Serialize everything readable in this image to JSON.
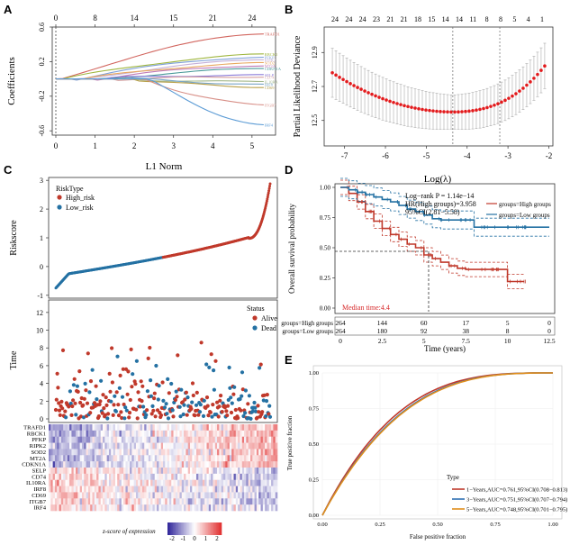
{
  "chart_data": [
    {
      "panel": "A",
      "type": "line",
      "title": "",
      "xlabel": "L1 Norm",
      "ylabel": "Coefficients",
      "xlim": [
        0,
        5.6
      ],
      "ylim": [
        -0.65,
        0.6
      ],
      "xticks": [
        "0",
        "1",
        "2",
        "3",
        "4",
        "5"
      ],
      "yticks": [
        "-0.6",
        "-0.2",
        "0.2",
        "0.6"
      ],
      "top_ticks": [
        "0",
        "8",
        "14",
        "15",
        "21",
        "24"
      ],
      "series": [
        {
          "name": "TRAFD1",
          "color": "#d2665f",
          "values": [
            0.52
          ]
        },
        {
          "name": "RBCK1",
          "color": "#9fb63f",
          "values": [
            0.29
          ]
        },
        {
          "name": "PFKP",
          "color": "#7fa0d8",
          "values": [
            0.25
          ]
        },
        {
          "name": "RIPK2",
          "color": "#c5b0d8",
          "values": [
            0.22
          ]
        },
        {
          "name": "SOD2",
          "color": "#e8a860",
          "values": [
            0.19
          ]
        },
        {
          "name": "MT2A",
          "color": "#c07bb8",
          "values": [
            0.15
          ]
        },
        {
          "name": "CDKN1A",
          "color": "#4a9a9a",
          "values": [
            0.12
          ]
        },
        {
          "name": "SELP",
          "color": "#8b7bd8",
          "values": [
            0.05
          ]
        },
        {
          "name": "CD74",
          "color": "#d6a0a0",
          "values": [
            0.02
          ]
        },
        {
          "name": "IL10RA",
          "color": "#a3b88a",
          "values": [
            -0.03
          ]
        },
        {
          "name": "IRF8",
          "color": "#7aa6c7",
          "values": [
            -0.06
          ]
        },
        {
          "name": "CD69",
          "color": "#b8a04a",
          "values": [
            -0.1
          ]
        },
        {
          "name": "ITGB7",
          "color": "#d89088",
          "values": [
            -0.3
          ]
        },
        {
          "name": "IRF4",
          "color": "#5b9bd5",
          "values": [
            -0.53
          ]
        }
      ]
    },
    {
      "panel": "B",
      "type": "scatter",
      "xlabel": "Log(λ)",
      "ylabel": "Partial Likelihood Deviance",
      "xlim": [
        -7.5,
        -1.9
      ],
      "ylim": [
        12.35,
        13.05
      ],
      "xticks": [
        "-7",
        "-6",
        "-5",
        "-4",
        "-3",
        "-2"
      ],
      "yticks": [
        "12.5",
        "12.7",
        "12.9"
      ],
      "top_ticks": [
        "24",
        "24",
        "24",
        "23",
        "21",
        "21",
        "18",
        "15",
        "14",
        "14",
        "11",
        "8",
        "8",
        "5",
        "4",
        "1"
      ],
      "vlines": [
        -4.35,
        -3.2
      ]
    },
    {
      "panel": "C-top",
      "type": "scatter",
      "ylabel": "Riskscore",
      "legend_title": "RiskType",
      "legend": [
        {
          "name": "High_risk",
          "color": "#c0392b"
        },
        {
          "name": "Low_risk",
          "color": "#2471a3"
        }
      ],
      "yticks": [
        "-1",
        "0",
        "1",
        "2",
        "3"
      ],
      "ylim": [
        -1,
        3
      ]
    },
    {
      "panel": "C-mid",
      "type": "scatter",
      "ylabel": "Time",
      "legend_title": "Status",
      "legend": [
        {
          "name": "Alive",
          "color": "#c0392b"
        },
        {
          "name": "Dead",
          "color": "#2471a3"
        }
      ],
      "yticks": [
        "0",
        "2",
        "4",
        "6",
        "8",
        "10",
        "12"
      ],
      "ylim": [
        0,
        13
      ]
    },
    {
      "panel": "C-heat",
      "type": "heatmap",
      "rows": [
        "TRAFD1",
        "RBCK1",
        "PFKP",
        "RIPK2",
        "SOD2",
        "MT2A",
        "CDKN1A",
        "SELP",
        "CD74",
        "IL10RA",
        "IRF8",
        "CD69",
        "ITGB7",
        "IRF4"
      ],
      "scale_title": "z-score of expression",
      "scale_ticks": [
        "-2",
        "-1",
        "0",
        "1",
        "2"
      ]
    },
    {
      "panel": "D",
      "type": "line",
      "xlabel": "Time (years)",
      "ylabel": "Overall survival probability",
      "xticks": [
        "0",
        "2.5",
        "5",
        "7.5",
        "10",
        "12.5"
      ],
      "yticks": [
        "0.00",
        "0.25",
        "0.50",
        "0.75",
        "1.00"
      ],
      "xlim": [
        0,
        12.5
      ],
      "ylim": [
        0,
        1
      ],
      "annotations": [
        "Log−rank P = 1.14e−14",
        "HR(High groups)=3.958",
        "95%CI(2.81−5.58)",
        "Median time:4.4"
      ],
      "series": [
        {
          "name": "groups=High groups",
          "color": "#c0392b",
          "x": [
            0,
            0.5,
            1,
            1.5,
            2,
            2.5,
            3,
            3.5,
            4,
            4.5,
            5,
            5.5,
            6,
            6.5,
            7,
            7.5,
            8,
            9,
            10,
            11
          ],
          "values": [
            1,
            0.95,
            0.88,
            0.8,
            0.72,
            0.66,
            0.61,
            0.57,
            0.53,
            0.5,
            0.44,
            0.41,
            0.38,
            0.35,
            0.33,
            0.32,
            0.32,
            0.32,
            0.22,
            0.22
          ]
        },
        {
          "name": "groups=Low groups",
          "color": "#2471a3",
          "x": [
            0,
            0.5,
            1,
            1.5,
            2,
            2.5,
            3,
            3.5,
            4,
            4.5,
            5,
            5.5,
            6,
            7,
            8,
            9,
            10,
            11,
            12.5
          ],
          "values": [
            1,
            0.98,
            0.96,
            0.94,
            0.92,
            0.9,
            0.88,
            0.85,
            0.82,
            0.8,
            0.77,
            0.74,
            0.73,
            0.73,
            0.67,
            0.67,
            0.67,
            0.67,
            0.67
          ]
        }
      ],
      "risk_table": {
        "rows": [
          "groups=High groups",
          "groups=Low groups"
        ],
        "High groups": [
          "264",
          "144",
          "60",
          "17",
          "5",
          "0"
        ],
        "Low groups": [
          "264",
          "180",
          "92",
          "38",
          "8",
          "0"
        ]
      }
    },
    {
      "panel": "E",
      "type": "line",
      "xlabel": "False positive fraction",
      "ylabel": "True positive fraction",
      "xticks": [
        "0.00",
        "0.25",
        "0.50",
        "0.75",
        "1.00"
      ],
      "yticks": [
        "0.00",
        "0.25",
        "0.50",
        "0.75",
        "1.00"
      ],
      "xlim": [
        0,
        1
      ],
      "ylim": [
        0,
        1
      ],
      "legend_title": "Type",
      "series": [
        {
          "name": "1−Years,AUC=0.761,95%CI(0.708−0.813)",
          "color": "#c0392b",
          "auc": 0.761
        },
        {
          "name": "3−Years,AUC=0.751,95%CI(0.707−0.794)",
          "color": "#2e6fb3",
          "auc": 0.751
        },
        {
          "name": "5−Years,AUC=0.748,95%CI(0.701−0.795)",
          "color": "#e08e1b",
          "auc": 0.748
        }
      ]
    }
  ],
  "panel_labels": [
    "A",
    "B",
    "C",
    "D",
    "E"
  ]
}
